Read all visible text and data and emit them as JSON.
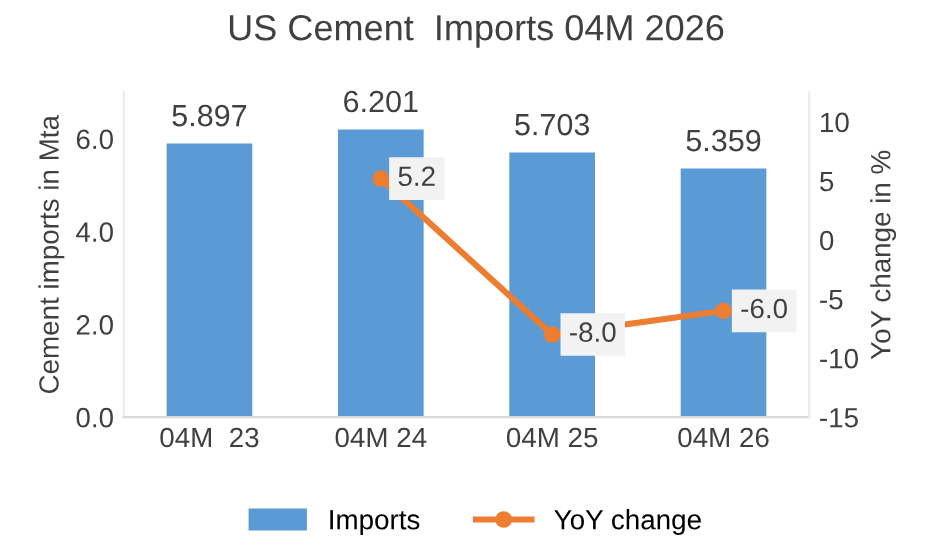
{
  "chart_data": {
    "type": "bar",
    "title": "US Cement  Imports 04M 2026",
    "categories": [
      "04M  23",
      "04M 24",
      "04M 25",
      "04M 26"
    ],
    "series": [
      {
        "name": "Imports",
        "color": "#5b9bd5",
        "values": [
          5.897,
          6.201,
          5.703,
          5.359
        ],
        "value_labels": [
          "5.897",
          "6.201",
          "5.703",
          "5.359"
        ]
      },
      {
        "name": "YoY change",
        "type": "line",
        "axis": "y2",
        "color": "#ed7d31",
        "marker": "circle",
        "values": [
          null,
          5.2,
          -8.0,
          -6.0
        ],
        "value_labels": [
          null,
          "5.2",
          "-8.0",
          "-6.0"
        ]
      }
    ],
    "ylabel": "Cement imports in Mta",
    "y2label": "YoY change in %",
    "ylim": [
      0,
      7
    ],
    "yticks": [
      {
        "value": 0,
        "label": "0.0"
      },
      {
        "value": 2,
        "label": "2.0"
      },
      {
        "value": 4,
        "label": "4.0"
      },
      {
        "value": 6,
        "label": "6.0"
      }
    ],
    "y2lim": [
      -15,
      12.5
    ],
    "y2ticks": [
      -15,
      -10,
      -5,
      0,
      5,
      10
    ],
    "legend": "bottom",
    "grid": false
  }
}
